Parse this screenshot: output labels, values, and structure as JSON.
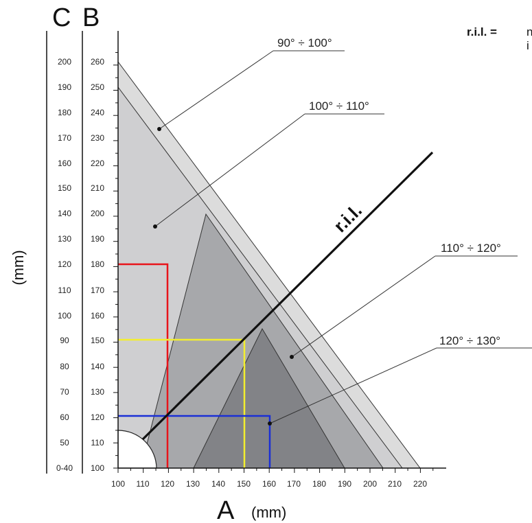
{
  "axes": {
    "a_letter": "A",
    "a_unit": "(mm)",
    "b_letter": "B",
    "c_letter": "C",
    "vertical_unit": "(mm)",
    "a_ticks": [
      "100",
      "110",
      "120",
      "130",
      "140",
      "150",
      "160",
      "170",
      "180",
      "190",
      "200",
      "210",
      "220"
    ],
    "b_ticks": [
      "100",
      "110",
      "120",
      "130",
      "140",
      "150",
      "160",
      "170",
      "180",
      "190",
      "200",
      "210",
      "220",
      "230",
      "240",
      "250",
      "260"
    ],
    "c_ticks": [
      "0-40",
      "50",
      "60",
      "70",
      "80",
      "90",
      "100",
      "110",
      "120",
      "130",
      "140",
      "150",
      "160",
      "170",
      "180",
      "190",
      "200"
    ]
  },
  "zones": [
    {
      "label": "90° ÷ 100°",
      "color": "#dcdcdc"
    },
    {
      "label": "100° ÷ 110°",
      "color": "#cfcfd1"
    },
    {
      "label": "110° ÷ 120°",
      "color": "#a7a8ab"
    },
    {
      "label": "120° ÷ 130°",
      "color": "#828387"
    }
  ],
  "ril": {
    "line_label": "r.i.l.",
    "legend_key": "r.i.l. =",
    "legend_text_line1": "n",
    "legend_text_line2": "i"
  },
  "examples": [
    {
      "color": "#e8141b",
      "a": 120,
      "b": 180
    },
    {
      "color": "#f3ee2e",
      "a": 150,
      "b": 150
    },
    {
      "color": "#1a2fd6",
      "a": 160,
      "b": 120
    }
  ]
}
